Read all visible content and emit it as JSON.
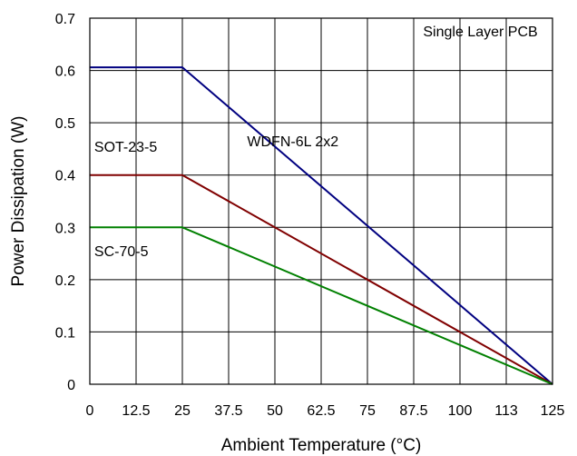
{
  "chart_data": {
    "type": "line",
    "xlabel": "Ambient Temperature (°C)",
    "ylabel": "Power Dissipation (W)",
    "xlim": [
      0,
      125
    ],
    "ylim": [
      0,
      0.7
    ],
    "x_ticks": [
      0,
      12.5,
      25,
      37.5,
      50,
      62.5,
      75,
      87.5,
      100,
      112.5,
      125
    ],
    "x_tick_labels": [
      "0",
      "12.5",
      "25",
      "37.5",
      "50",
      "62.5",
      "75",
      "87.5",
      "100",
      "113",
      "125"
    ],
    "y_ticks": [
      0,
      0.1,
      0.2,
      0.3,
      0.4,
      0.5,
      0.6,
      0.7
    ],
    "y_tick_labels": [
      "0",
      "0.1",
      "0.2",
      "0.3",
      "0.4",
      "0.5",
      "0.6",
      "0.7"
    ],
    "grid": true,
    "series": [
      {
        "name": "WDFN-6L 2x2",
        "color": "#000080",
        "x": [
          0,
          25,
          125
        ],
        "y": [
          0.606,
          0.606,
          0
        ]
      },
      {
        "name": "SOT-23-5",
        "color": "#800000",
        "x": [
          0,
          25,
          125
        ],
        "y": [
          0.4,
          0.4,
          0
        ]
      },
      {
        "name": "SC-70-5",
        "color": "#008000",
        "x": [
          0,
          25,
          125
        ],
        "y": [
          0.3,
          0.3,
          0
        ]
      }
    ],
    "annotations": [
      {
        "text": "Single Layer PCB",
        "x": 121,
        "y": 0.665,
        "anchor": "end"
      },
      {
        "text": "WDFN-6L 2x2",
        "x": 42.5,
        "y": 0.455,
        "anchor": "start"
      },
      {
        "text": "SOT-23-5",
        "x": 1.2,
        "y": 0.445,
        "anchor": "start"
      },
      {
        "text": "SC-70-5",
        "x": 1.2,
        "y": 0.245,
        "anchor": "start"
      }
    ]
  }
}
